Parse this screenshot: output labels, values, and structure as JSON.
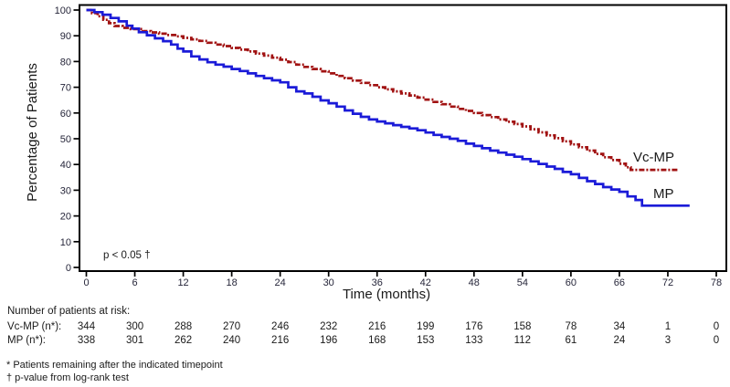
{
  "chart_data": {
    "type": "line",
    "subtype": "kaplan-meier-step",
    "title": "",
    "xlabel": "Time (months)",
    "ylabel": "Percentage of Patients",
    "xlim": [
      0,
      78
    ],
    "ylim": [
      0,
      100
    ],
    "x_ticks": [
      0,
      6,
      12,
      18,
      24,
      30,
      36,
      42,
      48,
      54,
      60,
      66,
      72,
      78
    ],
    "y_ticks": [
      0,
      10,
      20,
      30,
      40,
      50,
      60,
      70,
      80,
      90,
      100
    ],
    "grid": false,
    "annotation": "p < 0.05 †",
    "series": [
      {
        "name": "Vc-MP",
        "color": "#A11212",
        "line_style": "dash-dot",
        "points": [
          [
            0,
            100
          ],
          [
            0.7,
            98.8
          ],
          [
            1.4,
            97.6
          ],
          [
            2.1,
            96.2
          ],
          [
            2.8,
            94.9
          ],
          [
            3.5,
            93.8
          ],
          [
            4.5,
            93.1
          ],
          [
            5.5,
            92.6
          ],
          [
            7,
            91.8
          ],
          [
            8,
            91.3
          ],
          [
            9,
            90.8
          ],
          [
            10,
            90.3
          ],
          [
            11,
            89.8
          ],
          [
            12,
            89.2
          ],
          [
            13,
            88.6
          ],
          [
            14,
            88.0
          ],
          [
            15,
            87.3
          ],
          [
            16,
            86.6
          ],
          [
            17,
            86.0
          ],
          [
            18,
            85.3
          ],
          [
            19,
            84.6
          ],
          [
            20,
            83.9
          ],
          [
            21,
            83.1
          ],
          [
            22,
            82.3
          ],
          [
            23,
            81.5
          ],
          [
            24,
            80.7
          ],
          [
            25,
            79.8
          ],
          [
            26,
            78.8
          ],
          [
            27,
            77.9
          ],
          [
            28,
            77.1
          ],
          [
            29,
            76.2
          ],
          [
            30,
            75.4
          ],
          [
            31,
            74.4
          ],
          [
            32,
            73.5
          ],
          [
            33,
            72.6
          ],
          [
            34,
            71.7
          ],
          [
            35,
            70.8
          ],
          [
            36,
            70.0
          ],
          [
            37,
            69.2
          ],
          [
            38,
            68.4
          ],
          [
            39,
            67.6
          ],
          [
            40,
            66.8
          ],
          [
            41,
            66.0
          ],
          [
            42,
            65.2
          ],
          [
            43,
            64.3
          ],
          [
            44,
            63.4
          ],
          [
            45,
            62.5
          ],
          [
            46,
            61.6
          ],
          [
            47,
            60.8
          ],
          [
            48,
            60.0
          ],
          [
            49,
            59.2
          ],
          [
            50,
            58.4
          ],
          [
            51,
            57.5
          ],
          [
            52,
            56.6
          ],
          [
            53,
            55.7
          ],
          [
            54,
            54.8
          ],
          [
            55,
            53.7
          ],
          [
            56,
            52.5
          ],
          [
            57,
            51.3
          ],
          [
            58,
            50.2
          ],
          [
            59,
            49.0
          ],
          [
            60,
            47.8
          ],
          [
            61,
            46.7
          ],
          [
            62,
            45.4
          ],
          [
            63,
            44.1
          ],
          [
            64,
            42.8
          ],
          [
            65,
            41.7
          ],
          [
            66,
            40.3
          ],
          [
            66.8,
            38.9
          ],
          [
            67.4,
            37.9
          ],
          [
            73.4,
            37.9
          ]
        ]
      },
      {
        "name": "MP",
        "color": "#1B1BD8",
        "line_style": "solid",
        "points": [
          [
            0,
            100
          ],
          [
            1,
            99.2
          ],
          [
            2,
            98.2
          ],
          [
            3,
            96.9
          ],
          [
            4,
            95.6
          ],
          [
            5,
            93.9
          ],
          [
            5.7,
            92.8
          ],
          [
            6.5,
            91.4
          ],
          [
            7.5,
            90.2
          ],
          [
            8.5,
            89.0
          ],
          [
            9.5,
            87.9
          ],
          [
            10.5,
            86.6
          ],
          [
            11.3,
            85.0
          ],
          [
            12,
            83.9
          ],
          [
            13,
            82.0
          ],
          [
            14,
            80.8
          ],
          [
            15,
            79.7
          ],
          [
            16,
            78.8
          ],
          [
            17,
            78.0
          ],
          [
            18,
            77.1
          ],
          [
            19,
            76.3
          ],
          [
            20,
            75.4
          ],
          [
            21,
            74.4
          ],
          [
            22,
            73.5
          ],
          [
            23,
            72.7
          ],
          [
            24,
            71.9
          ],
          [
            25,
            70.0
          ],
          [
            26,
            68.4
          ],
          [
            27,
            67.6
          ],
          [
            28,
            66.3
          ],
          [
            29,
            64.9
          ],
          [
            30,
            63.8
          ],
          [
            31,
            62.5
          ],
          [
            32,
            61.0
          ],
          [
            33,
            59.7
          ],
          [
            34,
            58.5
          ],
          [
            35,
            57.5
          ],
          [
            36,
            56.7
          ],
          [
            37,
            56.0
          ],
          [
            38,
            55.3
          ],
          [
            39,
            54.6
          ],
          [
            40,
            54.0
          ],
          [
            41,
            53.3
          ],
          [
            42,
            52.4
          ],
          [
            43,
            51.5
          ],
          [
            44,
            50.7
          ],
          [
            45,
            50.0
          ],
          [
            46,
            49.2
          ],
          [
            47,
            48.1
          ],
          [
            48,
            47.2
          ],
          [
            49,
            46.3
          ],
          [
            50,
            45.4
          ],
          [
            51,
            44.6
          ],
          [
            52,
            43.8
          ],
          [
            53,
            43.0
          ],
          [
            54,
            42.1
          ],
          [
            55,
            41.2
          ],
          [
            56,
            40.2
          ],
          [
            57,
            39.2
          ],
          [
            58,
            38.3
          ],
          [
            59,
            37.1
          ],
          [
            60,
            36.2
          ],
          [
            61,
            34.8
          ],
          [
            62,
            33.5
          ],
          [
            63,
            32.4
          ],
          [
            64,
            31.2
          ],
          [
            65,
            30.3
          ],
          [
            66,
            29.4
          ],
          [
            67,
            27.6
          ],
          [
            68,
            26.2
          ],
          [
            68.8,
            24.0
          ],
          [
            74.7,
            24.0
          ]
        ]
      }
    ],
    "risk_table": {
      "title": "Number of patients at risk:",
      "columns_months": [
        0,
        6,
        12,
        18,
        24,
        30,
        36,
        42,
        48,
        54,
        60,
        66,
        72,
        78
      ],
      "rows": [
        {
          "label": "Vc-MP (n*):",
          "values": [
            344,
            300,
            288,
            270,
            246,
            232,
            216,
            199,
            176,
            158,
            78,
            34,
            1,
            0
          ]
        },
        {
          "label": "MP (n*):",
          "values": [
            338,
            301,
            262,
            240,
            216,
            196,
            168,
            153,
            133,
            112,
            61,
            24,
            3,
            0
          ]
        }
      ]
    },
    "footnotes": [
      "* Patients remaining after the indicated timepoint",
      "† p-value from log-rank test"
    ]
  }
}
